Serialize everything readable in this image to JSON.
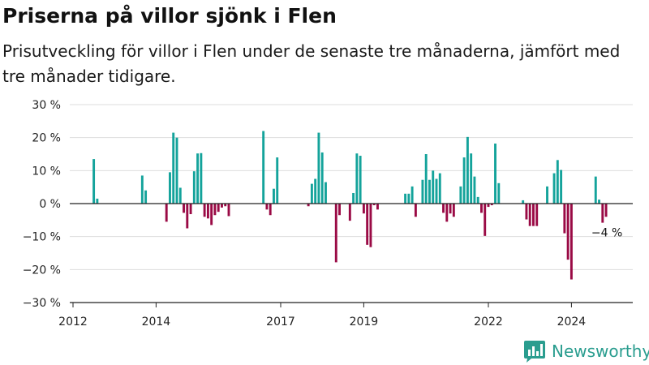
{
  "header": {
    "title": "Priserna på villor sjönk i Flen",
    "subtitle": "Prisutveckling för villor i Flen under de senaste tre månaderna, jämfört med tre månader tidigare."
  },
  "brand": {
    "name": "Newsworthy",
    "logo_icon": "bar-chart-logo-icon"
  },
  "colors": {
    "positive": "#14a39b",
    "negative": "#9a0a45",
    "grid": "#dddddd",
    "axis": "#222222",
    "brand": "#2a9d8f"
  },
  "chart_data": {
    "type": "bar",
    "title": "Priserna på villor sjönk i Flen",
    "xlabel": "",
    "ylabel": "",
    "ylim": [
      -30,
      30
    ],
    "y_ticks": [
      30,
      20,
      10,
      0,
      -10,
      -20,
      -30
    ],
    "y_tick_labels": [
      "30 %",
      "20 %",
      "10 %",
      "0 %",
      "−10 %",
      "−20 %",
      "−30 %"
    ],
    "x_ticks": [
      2012,
      2014,
      2017,
      2019,
      2022,
      2024
    ],
    "x_tick_labels": [
      "2012",
      "2014",
      "2017",
      "2019",
      "2022",
      "2024"
    ],
    "grid": true,
    "annotation": {
      "x": "2024-11",
      "value": -4,
      "text": "−4 %"
    },
    "points": [
      {
        "x": "2012-07",
        "value": 13.5
      },
      {
        "x": "2012-08",
        "value": 1.5
      },
      {
        "x": "2013-09",
        "value": 8.5
      },
      {
        "x": "2013-10",
        "value": 4
      },
      {
        "x": "2014-04",
        "value": -5.5
      },
      {
        "x": "2014-05",
        "value": 9.5
      },
      {
        "x": "2014-06",
        "value": 21.5
      },
      {
        "x": "2014-07",
        "value": 20
      },
      {
        "x": "2014-08",
        "value": 4.8
      },
      {
        "x": "2014-09",
        "value": -2.8
      },
      {
        "x": "2014-10",
        "value": -7.5
      },
      {
        "x": "2014-11",
        "value": -3.2
      },
      {
        "x": "2014-12",
        "value": 9.8
      },
      {
        "x": "2015-01",
        "value": 15.2
      },
      {
        "x": "2015-02",
        "value": 15.3
      },
      {
        "x": "2015-03",
        "value": -4
      },
      {
        "x": "2015-04",
        "value": -4.5
      },
      {
        "x": "2015-05",
        "value": -6.5
      },
      {
        "x": "2015-06",
        "value": -3.5
      },
      {
        "x": "2015-07",
        "value": -2.5
      },
      {
        "x": "2015-08",
        "value": -1.2
      },
      {
        "x": "2015-09",
        "value": -0.8
      },
      {
        "x": "2015-10",
        "value": -3.8
      },
      {
        "x": "2016-08",
        "value": 22
      },
      {
        "x": "2016-09",
        "value": -1.8
      },
      {
        "x": "2016-10",
        "value": -3.5
      },
      {
        "x": "2016-11",
        "value": 4.5
      },
      {
        "x": "2016-12",
        "value": 14
      },
      {
        "x": "2017-09",
        "value": -0.8
      },
      {
        "x": "2017-10",
        "value": 6
      },
      {
        "x": "2017-11",
        "value": 7.5
      },
      {
        "x": "2017-12",
        "value": 21.5
      },
      {
        "x": "2018-01",
        "value": 15.5
      },
      {
        "x": "2018-02",
        "value": 6.5
      },
      {
        "x": "2018-05",
        "value": -17.8
      },
      {
        "x": "2018-06",
        "value": -3.5
      },
      {
        "x": "2018-09",
        "value": -5.2
      },
      {
        "x": "2018-10",
        "value": 3.2
      },
      {
        "x": "2018-11",
        "value": 15.2
      },
      {
        "x": "2018-12",
        "value": 14.5
      },
      {
        "x": "2019-01",
        "value": -3
      },
      {
        "x": "2019-02",
        "value": -12.5
      },
      {
        "x": "2019-03",
        "value": -13.2
      },
      {
        "x": "2019-04",
        "value": -0.5
      },
      {
        "x": "2019-05",
        "value": -1.8
      },
      {
        "x": "2020-01",
        "value": 3
      },
      {
        "x": "2020-02",
        "value": 3
      },
      {
        "x": "2020-03",
        "value": 5.2
      },
      {
        "x": "2020-04",
        "value": -4
      },
      {
        "x": "2020-06",
        "value": 7.2
      },
      {
        "x": "2020-07",
        "value": 15
      },
      {
        "x": "2020-08",
        "value": 7.2
      },
      {
        "x": "2020-09",
        "value": 10
      },
      {
        "x": "2020-10",
        "value": 7.5
      },
      {
        "x": "2020-11",
        "value": 9.2
      },
      {
        "x": "2020-12",
        "value": -2.8
      },
      {
        "x": "2021-01",
        "value": -5.5
      },
      {
        "x": "2021-02",
        "value": -3
      },
      {
        "x": "2021-03",
        "value": -4
      },
      {
        "x": "2021-05",
        "value": 5.2
      },
      {
        "x": "2021-06",
        "value": 14
      },
      {
        "x": "2021-07",
        "value": 20.2
      },
      {
        "x": "2021-08",
        "value": 15.2
      },
      {
        "x": "2021-09",
        "value": 8.2
      },
      {
        "x": "2021-10",
        "value": 2
      },
      {
        "x": "2021-11",
        "value": -2.8
      },
      {
        "x": "2021-12",
        "value": -9.8
      },
      {
        "x": "2022-01",
        "value": -1
      },
      {
        "x": "2022-02",
        "value": -0.5
      },
      {
        "x": "2022-03",
        "value": 18.2
      },
      {
        "x": "2022-04",
        "value": 6.2
      },
      {
        "x": "2022-11",
        "value": 1
      },
      {
        "x": "2022-12",
        "value": -4.8
      },
      {
        "x": "2023-01",
        "value": -6.8
      },
      {
        "x": "2023-02",
        "value": -6.8
      },
      {
        "x": "2023-03",
        "value": -6.8
      },
      {
        "x": "2023-06",
        "value": 5.2
      },
      {
        "x": "2023-08",
        "value": 9.2
      },
      {
        "x": "2023-09",
        "value": 13.2
      },
      {
        "x": "2023-10",
        "value": 10.2
      },
      {
        "x": "2023-11",
        "value": -9
      },
      {
        "x": "2023-12",
        "value": -17
      },
      {
        "x": "2024-01",
        "value": -23
      },
      {
        "x": "2024-08",
        "value": 8.2
      },
      {
        "x": "2024-09",
        "value": 1.2
      },
      {
        "x": "2024-10",
        "value": -5.8
      },
      {
        "x": "2024-11",
        "value": -4
      }
    ]
  }
}
